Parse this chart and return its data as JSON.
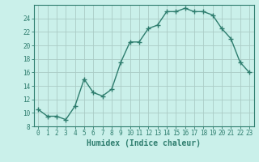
{
  "x_values": [
    0,
    1,
    2,
    3,
    4,
    5,
    6,
    7,
    8,
    9,
    10,
    11,
    12,
    13,
    14,
    15,
    16,
    17,
    18,
    19,
    20,
    21,
    22,
    23
  ],
  "y_values": [
    10.5,
    9.5,
    9.5,
    9.0,
    11.0,
    15.0,
    13.0,
    12.5,
    13.5,
    17.5,
    20.5,
    20.5,
    22.5,
    23.0,
    25.0,
    25.0,
    25.5,
    25.0,
    25.0,
    24.5,
    22.5,
    21.0,
    17.5,
    16.0
  ],
  "line_color": "#2e7d6e",
  "marker": "+",
  "marker_size": 4,
  "xlabel": "Humidex (Indice chaleur)",
  "xlim": [
    -0.5,
    23.5
  ],
  "ylim": [
    8,
    26
  ],
  "yticks": [
    8,
    10,
    12,
    14,
    16,
    18,
    20,
    22,
    24
  ],
  "xticks": [
    0,
    1,
    2,
    3,
    4,
    5,
    6,
    7,
    8,
    9,
    10,
    11,
    12,
    13,
    14,
    15,
    16,
    17,
    18,
    19,
    20,
    21,
    22,
    23
  ],
  "bg_color": "#caf0ea",
  "grid_color": "#aaccc6",
  "axis_color": "#2e7d6e",
  "tick_color": "#2e7d6e",
  "label_fontsize": 7,
  "tick_fontsize": 5.5,
  "linewidth": 1.0
}
